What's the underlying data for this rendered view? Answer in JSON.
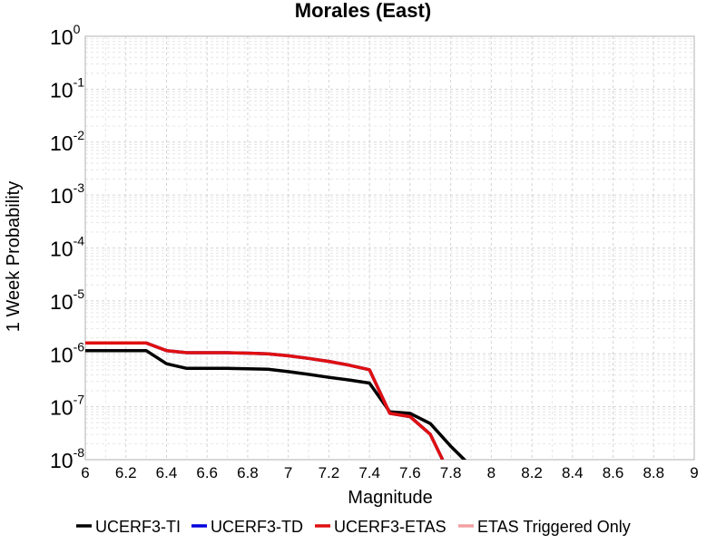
{
  "chart_data": {
    "type": "line",
    "title": "Morales (East)",
    "xlabel": "Magnitude",
    "ylabel": "1 Week Probability",
    "xlim": [
      6,
      9
    ],
    "ylim": [
      1e-08,
      1
    ],
    "yscale": "log",
    "grid": true,
    "legend_position": "bottom",
    "x_ticks": [
      "6",
      "6.2",
      "6.4",
      "6.6",
      "6.8",
      "7",
      "7.2",
      "7.4",
      "7.6",
      "7.8",
      "8",
      "8.2",
      "8.4",
      "8.6",
      "8.8",
      "9"
    ],
    "y_ticks": [
      {
        "base": "10",
        "exp": "0"
      },
      {
        "base": "10",
        "exp": "-1"
      },
      {
        "base": "10",
        "exp": "-2"
      },
      {
        "base": "10",
        "exp": "-3"
      },
      {
        "base": "10",
        "exp": "-4"
      },
      {
        "base": "10",
        "exp": "-5"
      },
      {
        "base": "10",
        "exp": "-6"
      },
      {
        "base": "10",
        "exp": "-7"
      },
      {
        "base": "10",
        "exp": "-8"
      }
    ],
    "series": [
      {
        "name": "UCERF3-TI",
        "color": "#000000",
        "x": [
          6.0,
          6.1,
          6.2,
          6.3,
          6.4,
          6.5,
          6.6,
          6.7,
          6.8,
          6.9,
          7.0,
          7.1,
          7.2,
          7.3,
          7.4,
          7.5,
          7.6,
          7.7,
          7.8,
          7.9
        ],
        "y": [
          1.15e-06,
          1.15e-06,
          1.15e-06,
          1.15e-06,
          6.5e-07,
          5.3e-07,
          5.3e-07,
          5.3e-07,
          5.2e-07,
          5.1e-07,
          4.6e-07,
          4.1e-07,
          3.6e-07,
          3.2e-07,
          2.8e-07,
          8e-08,
          7.5e-08,
          4.8e-08,
          1.8e-08,
          7.5e-09
        ]
      },
      {
        "name": "UCERF3-TD",
        "color": "#0000dd",
        "x": [
          6.0,
          6.1,
          6.2,
          6.3,
          6.4,
          6.5,
          6.6,
          6.7,
          6.8,
          6.9,
          7.0,
          7.1,
          7.2,
          7.3,
          7.4,
          7.5,
          7.6,
          7.7,
          7.76
        ],
        "y": [
          1.6e-06,
          1.6e-06,
          1.6e-06,
          1.6e-06,
          1.15e-06,
          1.05e-06,
          1.05e-06,
          1.05e-06,
          1.03e-06,
          1e-06,
          9.2e-07,
          8.2e-07,
          7.2e-07,
          6.1e-07,
          5e-07,
          7.5e-08,
          6.5e-08,
          3e-08,
          1e-08
        ]
      },
      {
        "name": "UCERF3-ETAS",
        "color": "#e01010",
        "x": [
          6.0,
          6.1,
          6.2,
          6.3,
          6.4,
          6.5,
          6.6,
          6.7,
          6.8,
          6.9,
          7.0,
          7.1,
          7.2,
          7.3,
          7.4,
          7.5,
          7.6,
          7.7,
          7.76
        ],
        "y": [
          1.6e-06,
          1.6e-06,
          1.6e-06,
          1.6e-06,
          1.15e-06,
          1.05e-06,
          1.05e-06,
          1.05e-06,
          1.03e-06,
          1e-06,
          9.2e-07,
          8.2e-07,
          7.2e-07,
          6.1e-07,
          5e-07,
          7.5e-08,
          6.5e-08,
          3e-08,
          1e-08
        ]
      },
      {
        "name": "ETAS Triggered Only",
        "color": "#f2a0a0",
        "x": [],
        "y": []
      }
    ]
  }
}
